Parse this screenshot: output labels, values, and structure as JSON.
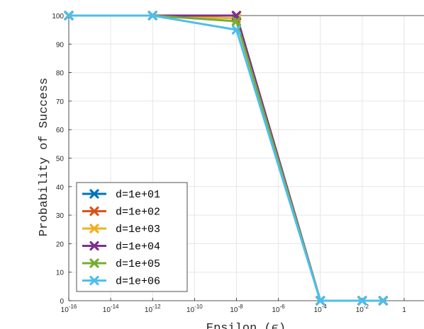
{
  "chart_data": {
    "type": "line",
    "title": "",
    "xlabel": "Epsilon (ϵ)",
    "ylabel": "Probability of Success",
    "x_scale": "log",
    "x_ticks": [
      1e-16,
      1e-14,
      1e-12,
      1e-10,
      1e-08,
      1e-06,
      0.0001,
      0.01,
      1
    ],
    "x_tick_labels": [
      {
        "base": "10",
        "exp": "-16"
      },
      {
        "base": "10",
        "exp": "-14"
      },
      {
        "base": "10",
        "exp": "-12"
      },
      {
        "base": "10",
        "exp": "-10"
      },
      {
        "base": "10",
        "exp": "-8"
      },
      {
        "base": "10",
        "exp": "-6"
      },
      {
        "base": "10",
        "exp": "-4"
      },
      {
        "base": "10",
        "exp": "-2"
      },
      {
        "base": "1",
        "exp": ""
      }
    ],
    "ylim": [
      0,
      100
    ],
    "y_ticks": [
      "0",
      "10",
      "20",
      "30",
      "40",
      "50",
      "60",
      "70",
      "80",
      "90",
      "100"
    ],
    "grid": true,
    "legend_position": "bottom-left",
    "x": [
      1e-16,
      1e-12,
      1e-08,
      0.0001,
      0.01,
      0.1
    ],
    "series": [
      {
        "name": "d=1e+01",
        "color": "#0072BD",
        "values": [
          100,
          100,
          100,
          0,
          0,
          0
        ]
      },
      {
        "name": "d=1e+02",
        "color": "#D95319",
        "values": [
          100,
          100,
          100,
          0,
          0,
          0
        ]
      },
      {
        "name": "d=1e+03",
        "color": "#EDB120",
        "values": [
          100,
          100,
          99,
          0,
          0,
          0
        ]
      },
      {
        "name": "d=1e+04",
        "color": "#7E2F8E",
        "values": [
          100,
          100,
          100,
          0,
          0,
          0
        ]
      },
      {
        "name": "d=1e+05",
        "color": "#77AC30",
        "values": [
          100,
          100,
          98,
          0,
          0,
          0
        ]
      },
      {
        "name": "d=1e+06",
        "color": "#4DBEEE",
        "values": [
          100,
          100,
          95,
          0,
          0,
          0
        ]
      }
    ]
  }
}
